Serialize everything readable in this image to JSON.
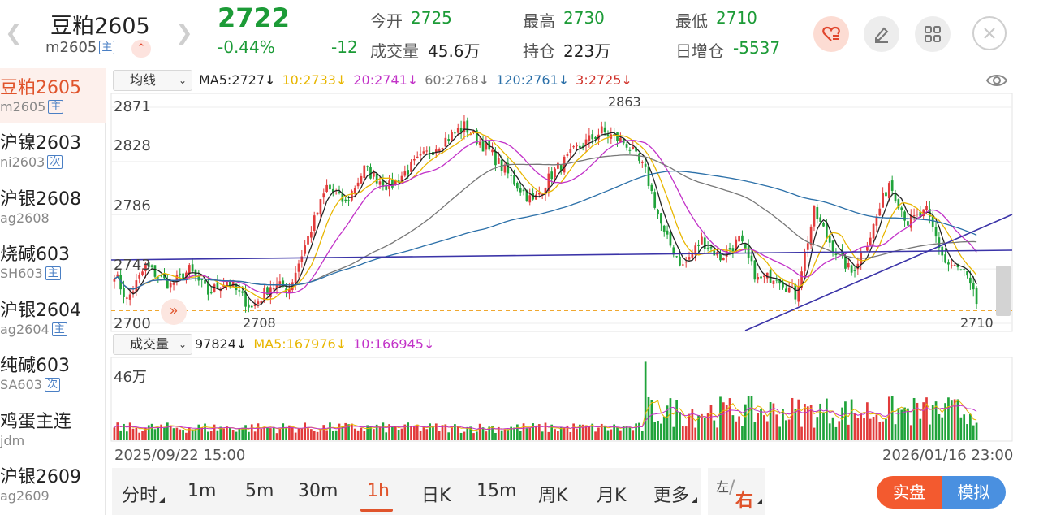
{
  "header": {
    "name": "豆粕2605",
    "code": "m2605",
    "main_tag": "主",
    "last_price": "2722",
    "change_pct": "-0.44%",
    "change_abs": "-12",
    "open_label": "今开",
    "open_value": "2725",
    "high_label": "最高",
    "high_value": "2730",
    "low_label": "最低",
    "low_value": "2710",
    "volume_label": "成交量",
    "volume_value": "45.6万",
    "oi_label": "持仓",
    "oi_value": "223万",
    "oi_change_label": "日增仓",
    "oi_change_value": "-5537"
  },
  "sidebar": {
    "items": [
      {
        "name": "豆粕2605",
        "code": "m2605",
        "tag": "主",
        "active": true
      },
      {
        "name": "沪镍2603",
        "code": "ni2603",
        "tag": "次"
      },
      {
        "name": "沪银2608",
        "code": "ag2608",
        "tag": ""
      },
      {
        "name": "烧碱603",
        "code": "SH603",
        "tag": "主"
      },
      {
        "name": "沪银2604",
        "code": "ag2604",
        "tag": "主"
      },
      {
        "name": "纯碱603",
        "code": "SA603",
        "tag": "次"
      },
      {
        "name": "鸡蛋主连",
        "code": "jdm",
        "tag": ""
      },
      {
        "name": "沪银2609",
        "code": "ag2609",
        "tag": ""
      }
    ]
  },
  "indicators": {
    "ma_selector": "均线",
    "ma5": "MA5:2727↓",
    "ma10": "10:2733↓",
    "ma20": "20:2741↓",
    "ma60": "60:2768↓",
    "ma120": "120:2761↓",
    "ma3": "3:2725↓",
    "vol_selector": "成交量",
    "vol_value": "97824↓",
    "vol_ma5": "MA5:167976↓",
    "vol_ma10": "10:166945↓",
    "colors": {
      "ma5": "#222222",
      "ma10": "#e8b600",
      "ma20": "#c232c8",
      "ma60": "#777777",
      "ma120": "#2a6fa8",
      "ma3": "#d0342c"
    }
  },
  "chart_data": {
    "type": "candlestick",
    "y_ticks": [
      "2871",
      "2828",
      "2786",
      "2743",
      "2700"
    ],
    "ylim": [
      2700,
      2871
    ],
    "high_label": "2863",
    "low_label": "2708",
    "last_low_label": "2710",
    "vol_max_label": "46万",
    "x_start": "2025/09/22 15:00",
    "x_end": "2026/01/16 23:00",
    "price_path": [
      {
        "t": 0,
        "p": 2740
      },
      {
        "t": 4,
        "p": 2718
      },
      {
        "t": 10,
        "p": 2745
      },
      {
        "t": 18,
        "p": 2730
      },
      {
        "t": 24,
        "p": 2742
      },
      {
        "t": 30,
        "p": 2724
      },
      {
        "t": 36,
        "p": 2734
      },
      {
        "t": 44,
        "p": 2712
      },
      {
        "t": 50,
        "p": 2730
      },
      {
        "t": 56,
        "p": 2728
      },
      {
        "t": 62,
        "p": 2768
      },
      {
        "t": 68,
        "p": 2808
      },
      {
        "t": 74,
        "p": 2795
      },
      {
        "t": 80,
        "p": 2822
      },
      {
        "t": 88,
        "p": 2808
      },
      {
        "t": 96,
        "p": 2826
      },
      {
        "t": 104,
        "p": 2842
      },
      {
        "t": 112,
        "p": 2856
      },
      {
        "t": 120,
        "p": 2836
      },
      {
        "t": 128,
        "p": 2812
      },
      {
        "t": 134,
        "p": 2796
      },
      {
        "t": 140,
        "p": 2818
      },
      {
        "t": 148,
        "p": 2838
      },
      {
        "t": 156,
        "p": 2852
      },
      {
        "t": 164,
        "p": 2842
      },
      {
        "t": 170,
        "p": 2820
      },
      {
        "t": 176,
        "p": 2770
      },
      {
        "t": 182,
        "p": 2745
      },
      {
        "t": 188,
        "p": 2766
      },
      {
        "t": 194,
        "p": 2752
      },
      {
        "t": 200,
        "p": 2766
      },
      {
        "t": 206,
        "p": 2734
      },
      {
        "t": 212,
        "p": 2738
      },
      {
        "t": 218,
        "p": 2722
      },
      {
        "t": 224,
        "p": 2788
      },
      {
        "t": 230,
        "p": 2760
      },
      {
        "t": 236,
        "p": 2740
      },
      {
        "t": 242,
        "p": 2770
      },
      {
        "t": 248,
        "p": 2812
      },
      {
        "t": 254,
        "p": 2780
      },
      {
        "t": 260,
        "p": 2788
      },
      {
        "t": 266,
        "p": 2748
      },
      {
        "t": 272,
        "p": 2740
      },
      {
        "t": 276,
        "p": 2716
      }
    ],
    "volume_max": 460000,
    "volume_last": 97824
  },
  "bottom": {
    "periods": [
      "分时",
      "1m",
      "5m",
      "30m",
      "1h",
      "日K",
      "15m",
      "周K",
      "月K",
      "更多"
    ],
    "active_period": "1h",
    "lr_left": "左",
    "lr_right": "右",
    "mode_real": "实盘",
    "mode_sim": "模拟"
  }
}
